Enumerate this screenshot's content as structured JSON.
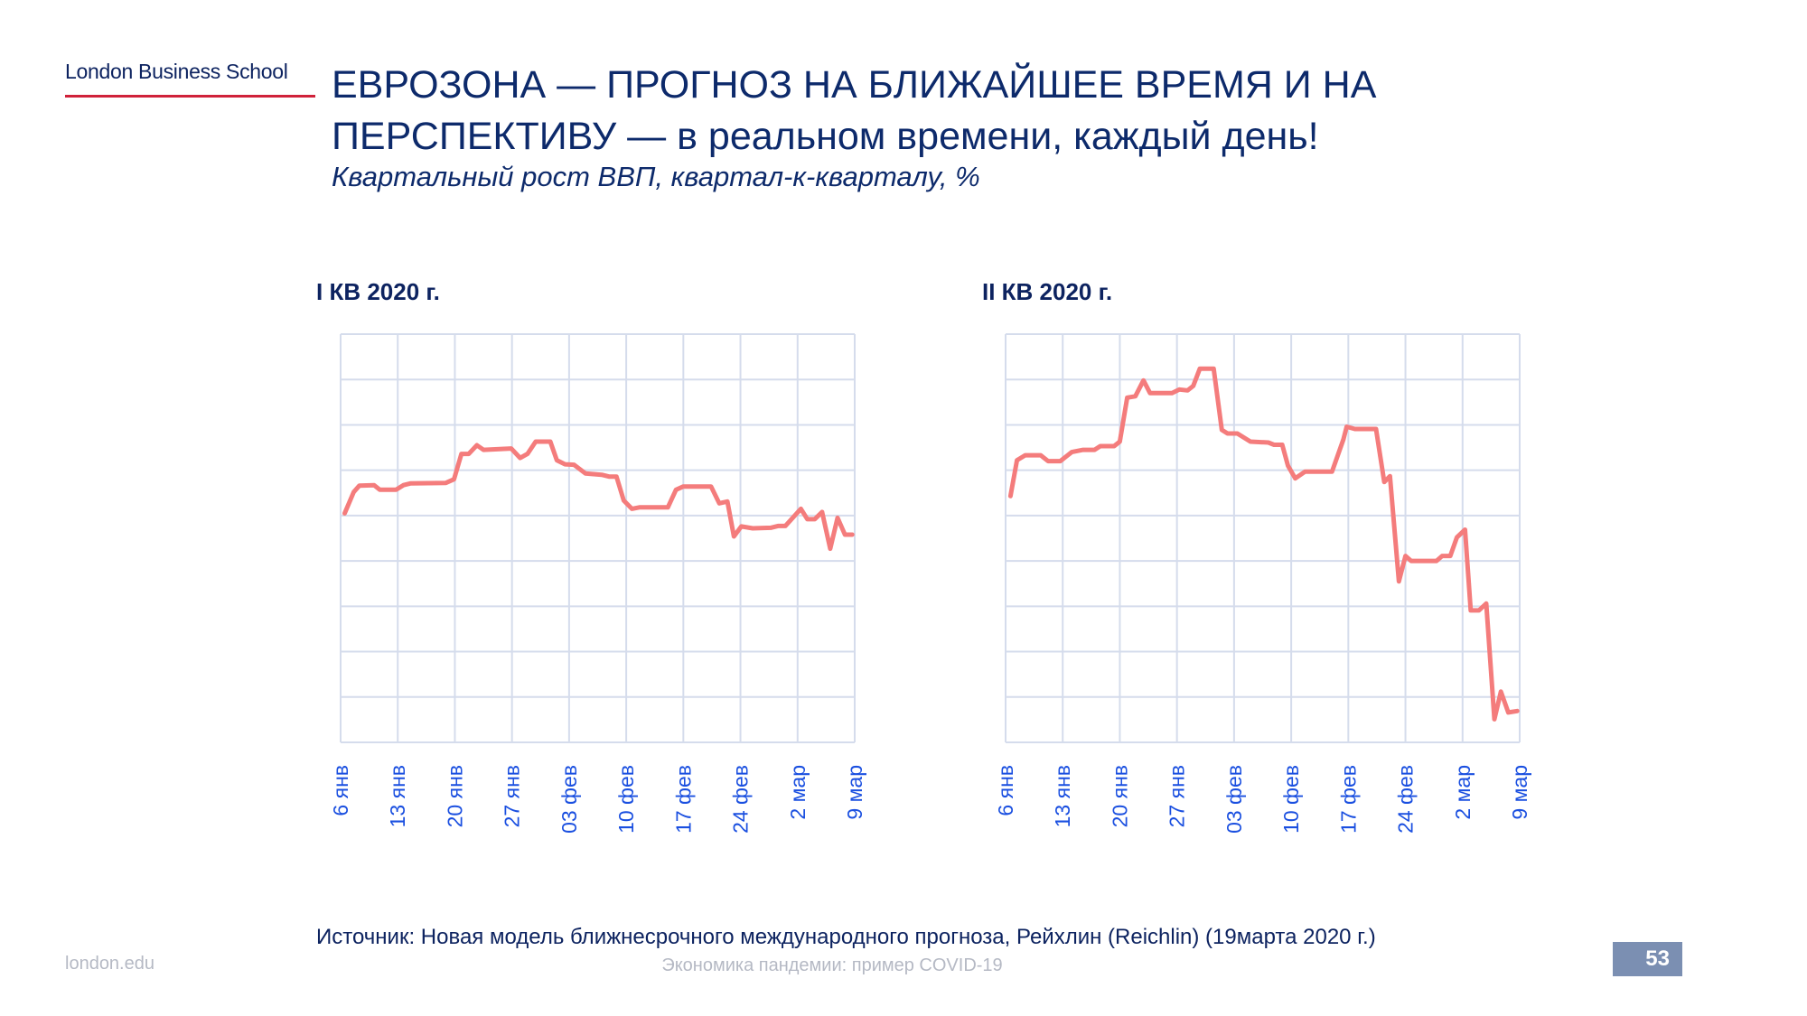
{
  "header": {
    "logo": "London Business School",
    "title_line1": "ЕВРОЗОНА — ПРОГНОЗ НА БЛИЖАЙШЕЕ ВРЕМЯ И НА",
    "title_line2": "ПЕРСПЕКТИВУ — в реальном времени, каждый день!",
    "subtitle": "Квартальный рост ВВП, квартал-к-кварталу, %"
  },
  "colors": {
    "line": "#f47c7c",
    "grid": "#d5dcec",
    "tick": "#1a4fe0"
  },
  "chart_data": [
    {
      "type": "line",
      "title": "I КВ 2020 г.",
      "xlabel": "",
      "ylabel": "",
      "x_unit": "days since 6 Jan 2020",
      "xlim": [
        0,
        63
      ],
      "ylim": [
        0,
        9
      ],
      "grid": true,
      "y_note": "no y tick labels shown; values in gridline units",
      "tick_labels": [
        "6 янв",
        "13 янв",
        "20 янв",
        "27 янв",
        "03 фев",
        "10 фев",
        "17 фев",
        "24 фев",
        "2 мар",
        "9 мар"
      ],
      "x": [
        0.5,
        1.6,
        2.3,
        4.1,
        4.8,
        6.8,
        7.7,
        8.6,
        12.9,
        13.9,
        14.8,
        15.7,
        16.7,
        17.5,
        20.9,
        22,
        22.9,
        23.9,
        25.7,
        26.5,
        27.5,
        28.6,
        30,
        32,
        32.9,
        33.8,
        34.7,
        35.7,
        36.6,
        40.1,
        41.1,
        42,
        45.4,
        46.4,
        47.4,
        48.2,
        49.1,
        50.5,
        52.7,
        53.6,
        54.5,
        56.4,
        57.2,
        58.1,
        59,
        60,
        60.9,
        61.8,
        62.7
      ],
      "values": [
        5.05,
        5.52,
        5.66,
        5.67,
        5.57,
        5.57,
        5.67,
        5.71,
        5.72,
        5.8,
        6.36,
        6.36,
        6.55,
        6.45,
        6.48,
        6.27,
        6.36,
        6.63,
        6.63,
        6.22,
        6.13,
        6.12,
        5.93,
        5.9,
        5.86,
        5.86,
        5.33,
        5.15,
        5.18,
        5.18,
        5.57,
        5.64,
        5.64,
        5.27,
        5.31,
        4.54,
        4.76,
        4.72,
        4.73,
        4.77,
        4.77,
        5.15,
        4.92,
        4.92,
        5.08,
        4.27,
        4.95,
        4.58,
        4.58
      ]
    },
    {
      "type": "line",
      "title": "II КВ 2020 г.",
      "xlabel": "",
      "ylabel": "",
      "x_unit": "days since 6 Jan 2020",
      "xlim": [
        0,
        63
      ],
      "ylim": [
        0,
        9
      ],
      "grid": true,
      "y_note": "no y tick labels shown; values in gridline units",
      "tick_labels": [
        "6 янв",
        "13 янв",
        "20 янв",
        "27 янв",
        "03 фев",
        "10 фев",
        "17 фев",
        "24 фев",
        "2 мар",
        "9 мар"
      ],
      "x": [
        0.6,
        1.4,
        2.4,
        4.3,
        5.2,
        6.7,
        8.1,
        9.5,
        10.9,
        11.6,
        13.3,
        14,
        14.9,
        15.9,
        16.9,
        17.7,
        20.4,
        21.3,
        22.3,
        23,
        23.8,
        25.5,
        26.5,
        27.2,
        28.4,
        30,
        32.2,
        32.9,
        33.9,
        34.6,
        35.5,
        36.7,
        40,
        41.4,
        41.8,
        42.8,
        45.4,
        46.4,
        47.1,
        48.2,
        49,
        49.7,
        52.8,
        53.5,
        54.5,
        55.3,
        56.3,
        57,
        58,
        58.9,
        59.9,
        60.7,
        61.6,
        62.7
      ],
      "values": [
        5.43,
        6.22,
        6.33,
        6.33,
        6.2,
        6.2,
        6.4,
        6.45,
        6.45,
        6.53,
        6.53,
        6.63,
        7.6,
        7.63,
        7.98,
        7.7,
        7.7,
        7.78,
        7.76,
        7.86,
        8.24,
        8.24,
        6.89,
        6.81,
        6.81,
        6.63,
        6.61,
        6.56,
        6.56,
        6.1,
        5.82,
        5.97,
        5.97,
        6.68,
        6.96,
        6.91,
        6.91,
        5.74,
        5.87,
        3.55,
        4.11,
        4.0,
        4.0,
        4.11,
        4.11,
        4.52,
        4.69,
        2.91,
        2.91,
        3.06,
        0.51,
        1.12,
        0.66,
        0.69
      ]
    }
  ],
  "footer": {
    "source": "Источник: Новая модель ближнесрочного международного прогноза, Рейхлин (Reichlin) (19марта 2020 г.)",
    "website": "london.edu",
    "course": "Экономика пандемии: пример COVID-19",
    "page": "53"
  }
}
